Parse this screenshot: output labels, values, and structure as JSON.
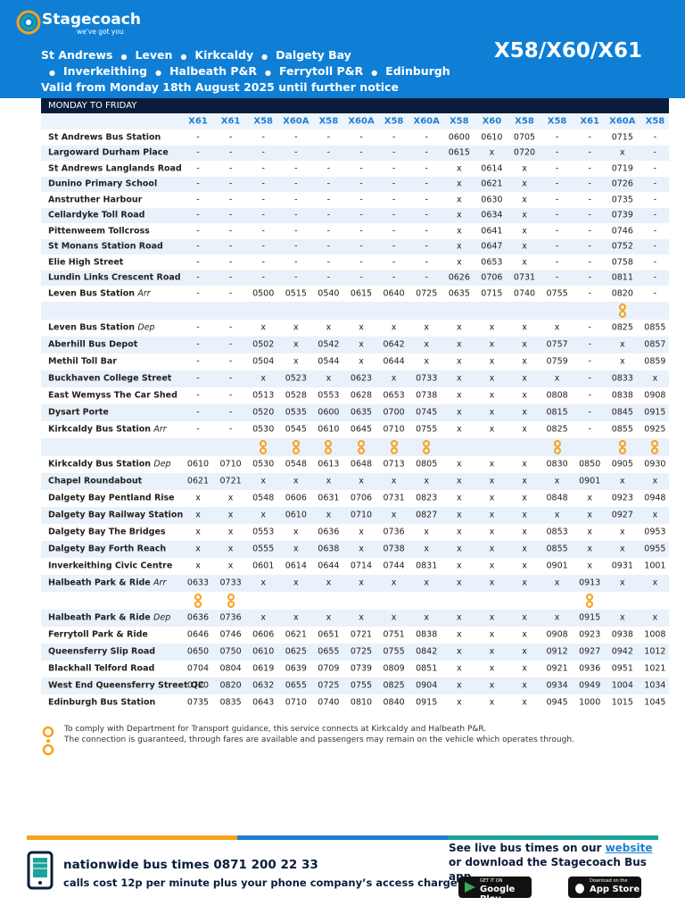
{
  "header": {
    "brand": "Stagecoach",
    "tagline": "we've got you",
    "stops": [
      "St Andrews",
      "Leven",
      "Kirkcaldy",
      "Dalgety Bay",
      "Inverkeithing",
      "Halbeath P&R",
      "Ferrytoll P&R",
      "Edinburgh"
    ],
    "validity": "Valid from Monday 18th August 2025 until further notice",
    "routes": "X58/X60/X61"
  },
  "timetable": {
    "day": "MONDAY TO FRIDAY",
    "services": [
      "X61",
      "X61",
      "X58",
      "X60A",
      "X58",
      "X60A",
      "X58",
      "X60A",
      "X58",
      "X60",
      "X58",
      "X58",
      "X61",
      "X60A",
      "X58"
    ],
    "sections": [
      [
        {
          "stop": "St Andrews Bus Station",
          "times": [
            "-",
            "-",
            "-",
            "-",
            "-",
            "-",
            "-",
            "-",
            "0600",
            "0610",
            "0705",
            "-",
            "-",
            "0715",
            "-"
          ]
        },
        {
          "stop": "Largoward Durham Place",
          "times": [
            "-",
            "-",
            "-",
            "-",
            "-",
            "-",
            "-",
            "-",
            "0615",
            "x",
            "0720",
            "-",
            "-",
            "x",
            "-"
          ]
        },
        {
          "stop": "St Andrews Langlands Road",
          "times": [
            "-",
            "-",
            "-",
            "-",
            "-",
            "-",
            "-",
            "-",
            "x",
            "0614",
            "x",
            "-",
            "-",
            "0719",
            "-"
          ]
        },
        {
          "stop": "Dunino Primary School",
          "times": [
            "-",
            "-",
            "-",
            "-",
            "-",
            "-",
            "-",
            "-",
            "x",
            "0621",
            "x",
            "-",
            "-",
            "0726",
            "-"
          ]
        },
        {
          "stop": "Anstruther Harbour",
          "times": [
            "-",
            "-",
            "-",
            "-",
            "-",
            "-",
            "-",
            "-",
            "x",
            "0630",
            "x",
            "-",
            "-",
            "0735",
            "-"
          ]
        },
        {
          "stop": "Cellardyke Toll Road",
          "times": [
            "-",
            "-",
            "-",
            "-",
            "-",
            "-",
            "-",
            "-",
            "x",
            "0634",
            "x",
            "-",
            "-",
            "0739",
            "-"
          ]
        },
        {
          "stop": "Pittenweem Tollcross",
          "times": [
            "-",
            "-",
            "-",
            "-",
            "-",
            "-",
            "-",
            "-",
            "x",
            "0641",
            "x",
            "-",
            "-",
            "0746",
            "-"
          ]
        },
        {
          "stop": "St Monans Station Road",
          "times": [
            "-",
            "-",
            "-",
            "-",
            "-",
            "-",
            "-",
            "-",
            "x",
            "0647",
            "x",
            "-",
            "-",
            "0752",
            "-"
          ]
        },
        {
          "stop": "Elie High Street",
          "times": [
            "-",
            "-",
            "-",
            "-",
            "-",
            "-",
            "-",
            "-",
            "x",
            "0653",
            "x",
            "-",
            "-",
            "0758",
            "-"
          ]
        },
        {
          "stop": "Lundin Links Crescent Road",
          "times": [
            "-",
            "-",
            "-",
            "-",
            "-",
            "-",
            "-",
            "-",
            "0626",
            "0706",
            "0731",
            "-",
            "-",
            "0811",
            "-"
          ]
        },
        {
          "stop": "Leven Bus Station",
          "suffix": "Arr",
          "times": [
            "-",
            "-",
            "0500",
            "0515",
            "0540",
            "0615",
            "0640",
            "0725",
            "0635",
            "0715",
            "0740",
            "0755",
            "-",
            "0820",
            "-"
          ]
        }
      ],
      [
        {
          "stop": "Leven Bus Station",
          "suffix": "Dep",
          "times": [
            "-",
            "-",
            "x",
            "x",
            "x",
            "x",
            "x",
            "x",
            "x",
            "x",
            "x",
            "x",
            "-",
            "0825",
            "0855"
          ]
        },
        {
          "stop": "Aberhill Bus Depot",
          "times": [
            "-",
            "-",
            "0502",
            "x",
            "0542",
            "x",
            "0642",
            "x",
            "x",
            "x",
            "x",
            "0757",
            "-",
            "x",
            "0857"
          ]
        },
        {
          "stop": "Methil Toll Bar",
          "times": [
            "-",
            "-",
            "0504",
            "x",
            "0544",
            "x",
            "0644",
            "x",
            "x",
            "x",
            "x",
            "0759",
            "-",
            "x",
            "0859"
          ]
        },
        {
          "stop": "Buckhaven College Street",
          "times": [
            "-",
            "-",
            "x",
            "0523",
            "x",
            "0623",
            "x",
            "0733",
            "x",
            "x",
            "x",
            "x",
            "-",
            "0833",
            "x"
          ]
        },
        {
          "stop": "East Wemyss The Car Shed",
          "times": [
            "-",
            "-",
            "0513",
            "0528",
            "0553",
            "0628",
            "0653",
            "0738",
            "x",
            "x",
            "x",
            "0808",
            "-",
            "0838",
            "0908"
          ]
        },
        {
          "stop": "Dysart Porte",
          "times": [
            "-",
            "-",
            "0520",
            "0535",
            "0600",
            "0635",
            "0700",
            "0745",
            "x",
            "x",
            "x",
            "0815",
            "-",
            "0845",
            "0915"
          ]
        },
        {
          "stop": "Kirkcaldy Bus Station",
          "suffix": "Arr",
          "times": [
            "-",
            "-",
            "0530",
            "0545",
            "0610",
            "0645",
            "0710",
            "0755",
            "x",
            "x",
            "x",
            "0825",
            "-",
            "0855",
            "0925"
          ]
        }
      ],
      [
        {
          "stop": "Kirkcaldy Bus Station",
          "suffix": "Dep",
          "times": [
            "0610",
            "0710",
            "0530",
            "0548",
            "0613",
            "0648",
            "0713",
            "0805",
            "x",
            "x",
            "x",
            "0830",
            "0850",
            "0905",
            "0930"
          ]
        },
        {
          "stop": "Chapel Roundabout",
          "times": [
            "0621",
            "0721",
            "x",
            "x",
            "x",
            "x",
            "x",
            "x",
            "x",
            "x",
            "x",
            "x",
            "0901",
            "x",
            "x"
          ]
        },
        {
          "stop": "Dalgety Bay Pentland Rise",
          "times": [
            "x",
            "x",
            "0548",
            "0606",
            "0631",
            "0706",
            "0731",
            "0823",
            "x",
            "x",
            "x",
            "0848",
            "x",
            "0923",
            "0948"
          ]
        },
        {
          "stop": "Dalgety Bay Railway Station",
          "times": [
            "x",
            "x",
            "x",
            "0610",
            "x",
            "0710",
            "x",
            "0827",
            "x",
            "x",
            "x",
            "x",
            "x",
            "0927",
            "x"
          ]
        },
        {
          "stop": "Dalgety Bay The Bridges",
          "times": [
            "x",
            "x",
            "0553",
            "x",
            "0636",
            "x",
            "0736",
            "x",
            "x",
            "x",
            "x",
            "0853",
            "x",
            "x",
            "0953"
          ]
        },
        {
          "stop": "Dalgety Bay Forth Reach",
          "times": [
            "x",
            "x",
            "0555",
            "x",
            "0638",
            "x",
            "0738",
            "x",
            "x",
            "x",
            "x",
            "0855",
            "x",
            "x",
            "0955"
          ]
        },
        {
          "stop": "Inverkeithing Civic Centre",
          "times": [
            "x",
            "x",
            "0601",
            "0614",
            "0644",
            "0714",
            "0744",
            "0831",
            "x",
            "x",
            "x",
            "0901",
            "x",
            "0931",
            "1001"
          ]
        },
        {
          "stop": "Halbeath Park & Ride",
          "suffix": "Arr",
          "times": [
            "0633",
            "0733",
            "x",
            "x",
            "x",
            "x",
            "x",
            "x",
            "x",
            "x",
            "x",
            "x",
            "0913",
            "x",
            "x"
          ]
        }
      ],
      [
        {
          "stop": "Halbeath Park & Ride",
          "suffix": "Dep",
          "times": [
            "0636",
            "0736",
            "x",
            "x",
            "x",
            "x",
            "x",
            "x",
            "x",
            "x",
            "x",
            "x",
            "0915",
            "x",
            "x"
          ]
        },
        {
          "stop": "Ferrytoll Park & Ride",
          "times": [
            "0646",
            "0746",
            "0606",
            "0621",
            "0651",
            "0721",
            "0751",
            "0838",
            "x",
            "x",
            "x",
            "0908",
            "0923",
            "0938",
            "1008"
          ]
        },
        {
          "stop": "Queensferry Slip Road",
          "times": [
            "0650",
            "0750",
            "0610",
            "0625",
            "0655",
            "0725",
            "0755",
            "0842",
            "x",
            "x",
            "x",
            "0912",
            "0927",
            "0942",
            "1012"
          ]
        },
        {
          "stop": "Blackhall Telford Road",
          "times": [
            "0704",
            "0804",
            "0619",
            "0639",
            "0709",
            "0739",
            "0809",
            "0851",
            "x",
            "x",
            "x",
            "0921",
            "0936",
            "0951",
            "1021"
          ]
        },
        {
          "stop": "West End Queensferry Street QC",
          "times": [
            "0720",
            "0820",
            "0632",
            "0655",
            "0725",
            "0755",
            "0825",
            "0904",
            "x",
            "x",
            "x",
            "0934",
            "0949",
            "1004",
            "1034"
          ]
        },
        {
          "stop": "Edinburgh Bus Station",
          "times": [
            "0735",
            "0835",
            "0643",
            "0710",
            "0740",
            "0810",
            "0840",
            "0915",
            "x",
            "x",
            "x",
            "0945",
            "1000",
            "1015",
            "1045"
          ]
        }
      ]
    ]
  },
  "footnote": [
    "To comply with Department for Transport guidance, this service connects at Kirkcaldy and Halbeath P&R.",
    "The connection is guaranteed, through fares are available and passengers may remain on the vehicle which operates through."
  ],
  "footer": {
    "phone": "nationwide bus times 0871 200 22 33",
    "cost": "calls cost 12p per minute plus your phone company’s access charge",
    "live_prefix": "See live bus times on our ",
    "link": "website",
    "live_suffix": " or download the Stagecoach Bus app.",
    "google_small": "GET IT ON",
    "google": "Google Play",
    "apple_small": "Download on the",
    "apple": "App Store"
  }
}
